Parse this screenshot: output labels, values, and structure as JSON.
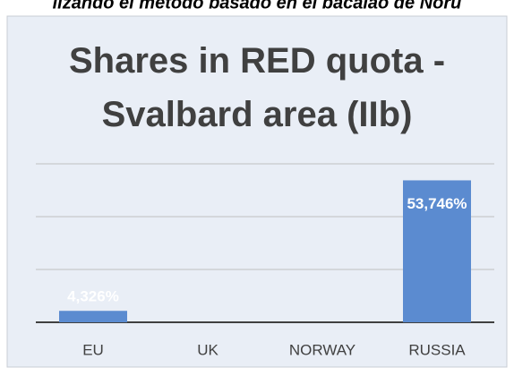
{
  "header_text": "lizando el método basado en el bacalao de Noru",
  "chart_data": {
    "type": "bar",
    "title": "Shares in RED quota - Svalbard area (IIb)",
    "categories": [
      "EU",
      "UK",
      "NORWAY",
      "RUSSIA"
    ],
    "values": [
      4.326,
      0,
      0,
      53.746
    ],
    "value_labels": [
      "4,326%",
      null,
      null,
      "53,746%"
    ],
    "color": "#5b8bd0",
    "ylim": [
      0,
      60
    ],
    "yticks": [
      0,
      20,
      40,
      60
    ],
    "grid": true
  }
}
